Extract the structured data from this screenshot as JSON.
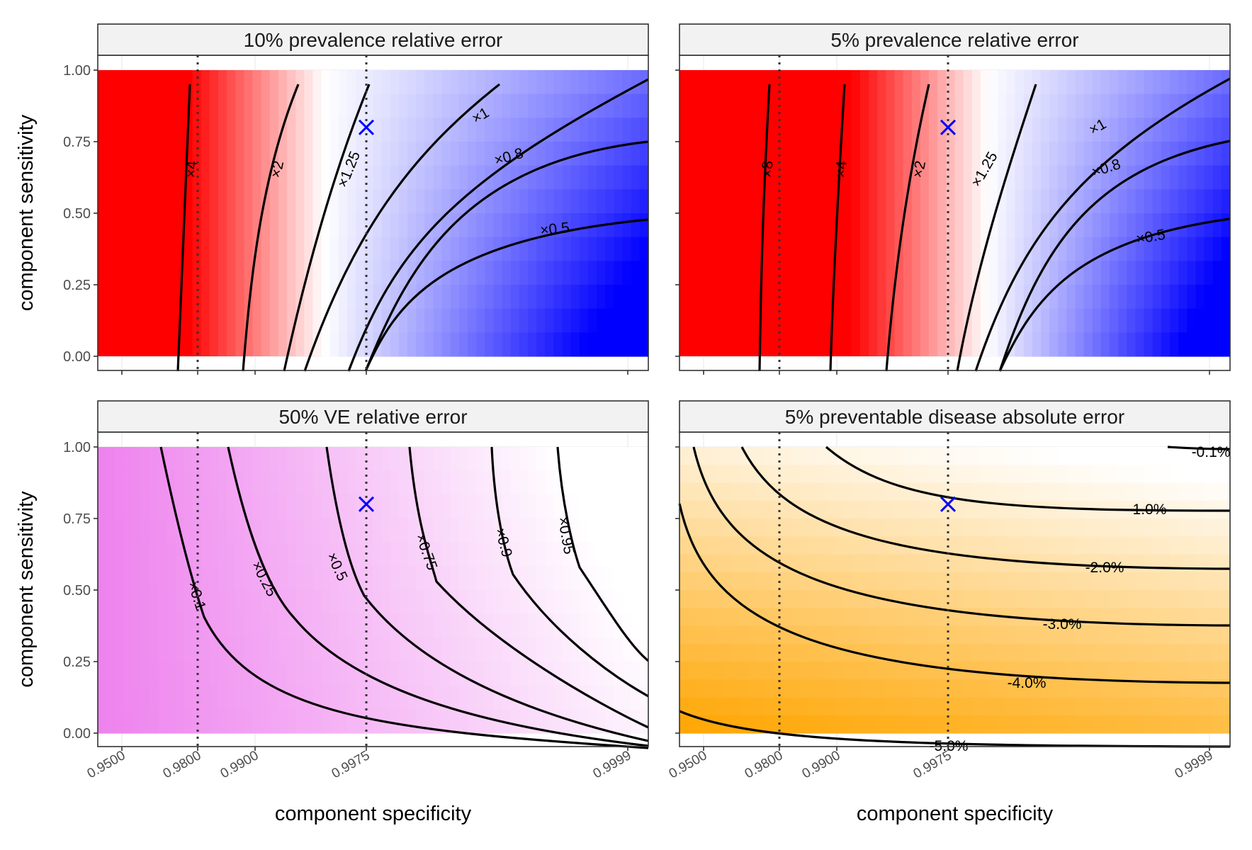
{
  "chart_data": [
    {
      "type": "heatmap",
      "title": "10% prevalence relative error",
      "xlabel": "component specificity",
      "ylabel": "component sensitivity",
      "x_ticks": [
        "0.9500",
        "0.9800",
        "0.9900",
        "0.9975",
        "0.9999"
      ],
      "y_ticks": [
        "0.00",
        "0.25",
        "0.50",
        "0.75",
        "1.00"
      ],
      "ylim": [
        0,
        1
      ],
      "fill": "diverging red-white-blue",
      "colors": {
        "low": "#0000ff",
        "mid": "#ffffff",
        "high": "#ff0000"
      },
      "contour_labels": [
        "×4",
        "×2",
        "×1.25",
        "×1",
        "×0.8",
        "×0.5"
      ],
      "reference_lines_x": [
        0.98,
        0.9975
      ],
      "marker": {
        "x": 0.9975,
        "y": 0.8,
        "symbol": "×",
        "color": "#0000ff"
      }
    },
    {
      "type": "heatmap",
      "title": "5% prevalence relative error",
      "xlabel": "component specificity",
      "ylabel": "component sensitivity",
      "x_ticks": [
        "0.9500",
        "0.9800",
        "0.9900",
        "0.9975",
        "0.9999"
      ],
      "y_ticks": [
        "0.00",
        "0.25",
        "0.50",
        "0.75",
        "1.00"
      ],
      "ylim": [
        0,
        1
      ],
      "fill": "diverging red-white-blue",
      "colors": {
        "low": "#0000ff",
        "mid": "#ffffff",
        "high": "#ff0000"
      },
      "contour_labels": [
        "×8",
        "×4",
        "×2",
        "×1.25",
        "×1",
        "×0.8",
        "×0.5"
      ],
      "reference_lines_x": [
        0.98,
        0.9975
      ],
      "marker": {
        "x": 0.9975,
        "y": 0.8,
        "symbol": "×",
        "color": "#0000ff"
      }
    },
    {
      "type": "heatmap",
      "title": "50% VE relative error",
      "xlabel": "component specificity",
      "ylabel": "component sensitivity",
      "x_ticks": [
        "0.9500",
        "0.9800",
        "0.9900",
        "0.9975",
        "0.9999"
      ],
      "y_ticks": [
        "0.00",
        "0.25",
        "0.50",
        "0.75",
        "1.00"
      ],
      "ylim": [
        0,
        1
      ],
      "fill": "violet-white",
      "colors": {
        "low": "#ee82ee",
        "high": "#ffffff"
      },
      "contour_labels": [
        "×0.1",
        "×0.25",
        "×0.5",
        "×0.75",
        "×0.9",
        "×0.95"
      ],
      "reference_lines_x": [
        0.98,
        0.9975
      ],
      "marker": {
        "x": 0.9975,
        "y": 0.8,
        "symbol": "×",
        "color": "#0000ff"
      }
    },
    {
      "type": "heatmap",
      "title": "5% preventable disease absolute error",
      "xlabel": "component specificity",
      "ylabel": "component sensitivity",
      "x_ticks": [
        "0.9500",
        "0.9800",
        "0.9900",
        "0.9975",
        "0.9999"
      ],
      "y_ticks": [
        "0.00",
        "0.25",
        "0.50",
        "0.75",
        "1.00"
      ],
      "ylim": [
        0,
        1
      ],
      "fill": "orange-white",
      "colors": {
        "low": "#ffa500",
        "high": "#ffffff"
      },
      "contour_labels": [
        "-0.1%",
        "-1.0%",
        "-2.0%",
        "-3.0%",
        "-4.0%",
        "-5.0%"
      ],
      "reference_lines_x": [
        0.98,
        0.9975
      ],
      "marker": {
        "x": 0.9975,
        "y": 0.8,
        "symbol": "×",
        "color": "#0000ff"
      }
    }
  ]
}
